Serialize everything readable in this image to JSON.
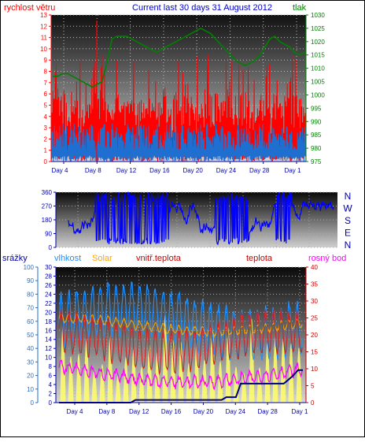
{
  "header": {
    "left_label": "rychlost větru",
    "title": "Current last 30 days 31 August 2012",
    "right_label": "tlak"
  },
  "colors": {
    "wind": "#ff0000",
    "gust_avg": "#1e6fd0",
    "pressure": "#008000",
    "direction": "#0000ff",
    "rain": "#000080",
    "humidity": "#1e90ff",
    "solar": "#ffff66",
    "indoor_temp": "#ffa500",
    "temp": "#cc2222",
    "dewpoint": "#ff00ff",
    "left_axis": "#ff0000",
    "right_axis": "#008000"
  },
  "chart_data": [
    {
      "type": "line",
      "name": "wind-pressure",
      "x_ticks": [
        "Day 4",
        "Day 8",
        "Day 12",
        "Day 16",
        "Day 20",
        "Day 24",
        "Day 28",
        "Day 1"
      ],
      "y_left_label": "rychlost větru",
      "y_left_ticks": [
        0,
        1,
        2,
        3,
        4,
        5,
        6,
        7,
        8,
        9,
        10,
        11,
        12,
        13
      ],
      "y_left_range": [
        0,
        13
      ],
      "y_right_label": "tlak",
      "y_right_ticks": [
        975,
        980,
        985,
        990,
        995,
        1000,
        1005,
        1010,
        1015,
        1020,
        1025,
        1030
      ],
      "y_right_range": [
        975,
        1030
      ],
      "pressure": [
        1007,
        1007,
        1008,
        1008,
        1007,
        1006,
        1005,
        1004,
        1003,
        1004,
        1005,
        1012,
        1021,
        1022,
        1022,
        1022,
        1021,
        1020,
        1019,
        1018,
        1017,
        1016,
        1017,
        1018,
        1019,
        1020,
        1021,
        1022,
        1023,
        1024,
        1025,
        1024,
        1023,
        1021,
        1019,
        1017,
        1015,
        1013,
        1012,
        1011,
        1012,
        1013,
        1015,
        1018,
        1021,
        1022,
        1020,
        1019,
        1018,
        1016,
        1015,
        1016
      ],
      "grid": true
    },
    {
      "type": "area",
      "name": "wind-direction",
      "y_ticks": [
        0,
        90,
        180,
        270,
        360
      ],
      "y_range": [
        0,
        360
      ],
      "compass_labels": [
        "N",
        "W",
        "S",
        "E",
        "N"
      ],
      "grid": true
    },
    {
      "type": "line",
      "name": "temperature-humidity",
      "x_ticks": [
        "Day 4",
        "Day 8",
        "Day 12",
        "Day 16",
        "Day 20",
        "Day 24",
        "Day 28",
        "Day 1"
      ],
      "series_labels": [
        "srážky",
        "vlhkost",
        "Solar",
        "vnitř.teplota",
        "teplota",
        "rosný bod"
      ],
      "y_rain_ticks": [
        0,
        10,
        20,
        30,
        40,
        50,
        60,
        70,
        80,
        90,
        100
      ],
      "y_rain_range": [
        0,
        100
      ],
      "y_temp_left_ticks": [
        0,
        2,
        4,
        6,
        8,
        10,
        12,
        14,
        16,
        18,
        20,
        22,
        24,
        26,
        28,
        30
      ],
      "y_temp_left_range": [
        0,
        30
      ],
      "y_temp_right_ticks": [
        0,
        5,
        10,
        15,
        20,
        25,
        30,
        35,
        40
      ],
      "y_temp_right_range": [
        0,
        40
      ],
      "rain": [
        0,
        0,
        0,
        0,
        0,
        0,
        0,
        0,
        0,
        0,
        0,
        0,
        0,
        0,
        0,
        0,
        2,
        2,
        2,
        2,
        2,
        2,
        2,
        2,
        2,
        2,
        2,
        2,
        2,
        2,
        2,
        2,
        2,
        2,
        2,
        4,
        4,
        4,
        14,
        14,
        14,
        14,
        14,
        14,
        14,
        14,
        14,
        14,
        17,
        20,
        24,
        24
      ],
      "grid": true
    }
  ]
}
